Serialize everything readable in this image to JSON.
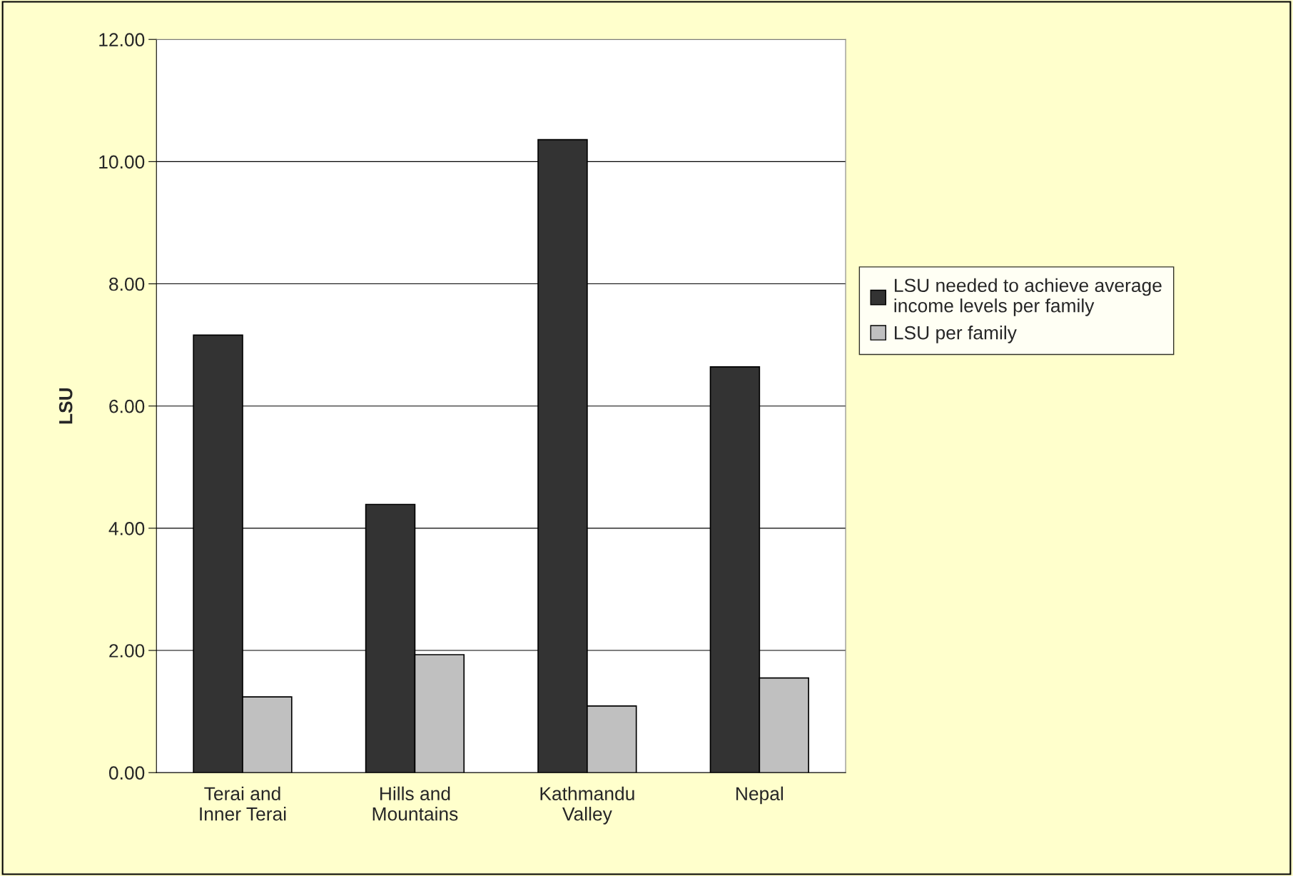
{
  "chart_data": {
    "type": "bar",
    "ylabel": "LSU",
    "categories": [
      "Terai and\nInner Terai",
      "Hills and\nMountains",
      "Kathmandu\nValley",
      "Nepal"
    ],
    "series": [
      {
        "name": "LSU needed to achieve average\nincome levels per family",
        "color": "#333333",
        "values": [
          7.16,
          4.39,
          10.36,
          6.64
        ]
      },
      {
        "name": "LSU per family",
        "color": "#c0c0c0",
        "values": [
          1.24,
          1.93,
          1.09,
          1.55
        ]
      }
    ],
    "ylim": [
      0,
      12
    ],
    "yticks": [
      {
        "value": 0,
        "label": "0.00"
      },
      {
        "value": 2,
        "label": "2.00"
      },
      {
        "value": 4,
        "label": "4.00"
      },
      {
        "value": 6,
        "label": "6.00"
      },
      {
        "value": 8,
        "label": "8.00"
      },
      {
        "value": 10,
        "label": "10.00"
      },
      {
        "value": 12,
        "label": "12.00"
      }
    ],
    "grid": "y",
    "legend": "right"
  }
}
